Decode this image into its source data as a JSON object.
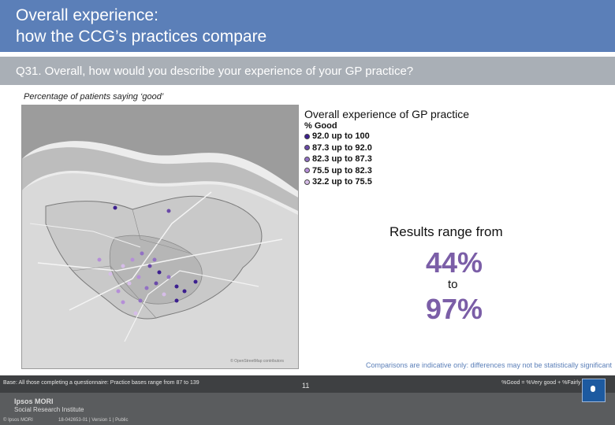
{
  "header": {
    "title_line1": "Overall experience:",
    "title_line2": "how the CCG’s practices compare"
  },
  "question": "Q31. Overall, how would you describe your experience of your GP practice?",
  "subtitle": "Percentage of patients saying ‘good’",
  "map": {
    "credit": "© OpenStreetMap contributors"
  },
  "legend": {
    "title": "Overall experience of GP practice",
    "subtitle": "% Good",
    "items": [
      {
        "label": "92.0 up to 100",
        "color": "#3c1f8f"
      },
      {
        "label": "87.3 up to 92.0",
        "color": "#6a4aa8"
      },
      {
        "label": "82.3 up to 87.3",
        "color": "#9271c4"
      },
      {
        "label": "75.5 up to 82.3",
        "color": "#b58fd8"
      },
      {
        "label": "32.2 up to 75.5",
        "color": "#d6bde8"
      }
    ]
  },
  "results": {
    "label": "Results range from",
    "min": "44%",
    "to": "to",
    "max": "97%"
  },
  "comparisons_note": "Comparisons are indicative only: differences may not be statistically significant",
  "footer": {
    "base": "Base: All those completing a questionnaire: Practice bases range from 87 to 139",
    "good_definition": "%Good = %Very good + %Fairly good",
    "brand_name": "Ipsos MORI",
    "brand_sub": "Social Research Institute",
    "copyright": "© Ipsos MORI",
    "job_ref": "18-042653-01 | Version 1 | Public",
    "page_number": "11"
  },
  "colors": {
    "header_blue": "#5b7fb8",
    "question_grey": "#a9afb6",
    "accent_purple": "#7b5ea7"
  }
}
